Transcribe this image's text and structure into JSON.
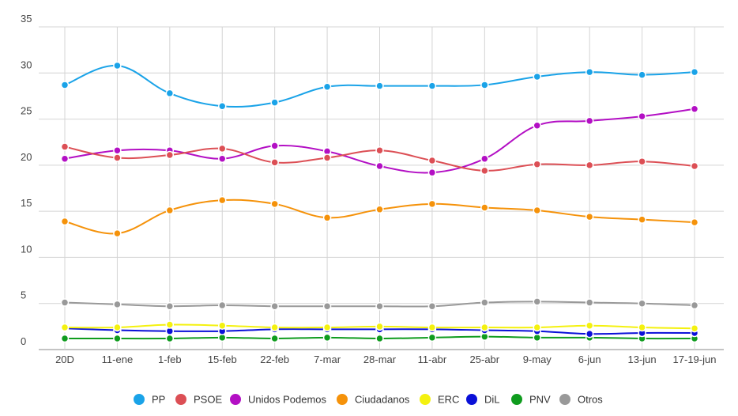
{
  "chart_data": {
    "type": "line",
    "title": "",
    "xlabel": "",
    "ylabel": "",
    "ylim": [
      0,
      35
    ],
    "yticks": [
      0,
      5,
      10,
      15,
      20,
      25,
      30,
      35
    ],
    "grid": "on",
    "legend_position": "bottom",
    "categories": [
      "20D",
      "11-ene",
      "1-feb",
      "15-feb",
      "22-feb",
      "7-mar",
      "28-mar",
      "11-abr",
      "25-abr",
      "9-may",
      "6-jun",
      "13-jun",
      "17-19-jun"
    ],
    "series": [
      {
        "name": "PP",
        "color": "#1aa3e8",
        "values": [
          28.7,
          30.8,
          27.8,
          26.4,
          26.8,
          28.5,
          28.6,
          28.6,
          28.7,
          29.6,
          30.1,
          29.8,
          30.1
        ]
      },
      {
        "name": "PSOE",
        "color": "#dc4f55",
        "values": [
          22.0,
          20.8,
          21.1,
          21.8,
          20.3,
          20.8,
          21.6,
          20.5,
          19.4,
          20.1,
          20.0,
          20.4,
          19.9
        ]
      },
      {
        "name": "Unidos Podemos",
        "color": "#b30fc4",
        "values": [
          20.7,
          21.6,
          21.6,
          20.7,
          22.1,
          21.5,
          19.9,
          19.2,
          20.7,
          24.3,
          24.8,
          25.3,
          26.1
        ]
      },
      {
        "name": "Ciudadanos",
        "color": "#f5920a",
        "values": [
          13.9,
          12.6,
          15.1,
          16.2,
          15.8,
          14.3,
          15.2,
          15.8,
          15.4,
          15.1,
          14.4,
          14.1,
          13.8
        ]
      },
      {
        "name": "ERC",
        "color": "#f4f10f",
        "values": [
          2.4,
          2.4,
          2.7,
          2.6,
          2.4,
          2.4,
          2.5,
          2.4,
          2.4,
          2.4,
          2.6,
          2.4,
          2.3
        ]
      },
      {
        "name": "DiL",
        "color": "#0a10d8",
        "values": [
          2.3,
          2.1,
          2.0,
          2.0,
          2.2,
          2.2,
          2.2,
          2.2,
          2.1,
          2.0,
          1.7,
          1.8,
          1.8
        ]
      },
      {
        "name": "PNV",
        "color": "#0f9c1e",
        "values": [
          1.2,
          1.2,
          1.2,
          1.3,
          1.2,
          1.3,
          1.2,
          1.3,
          1.4,
          1.3,
          1.3,
          1.2,
          1.2
        ]
      },
      {
        "name": "Otros",
        "color": "#999999",
        "values": [
          5.1,
          4.9,
          4.7,
          4.8,
          4.7,
          4.7,
          4.7,
          4.7,
          5.1,
          5.2,
          5.1,
          5.0,
          4.8
        ]
      }
    ]
  }
}
